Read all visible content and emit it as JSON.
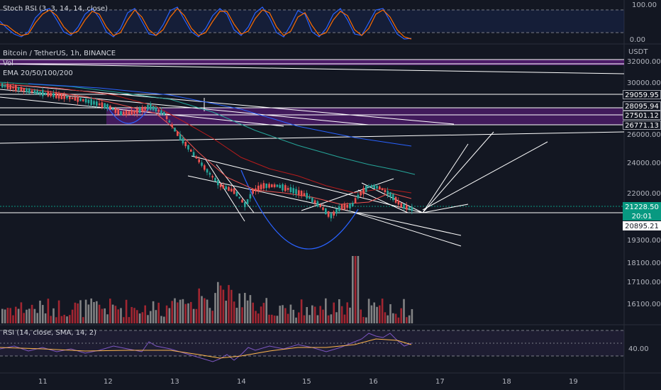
{
  "stoch_rsi": {
    "label": "Stoch RSI (3, 3, 14, 14, close)",
    "axis": [
      "100.00",
      "0.00"
    ]
  },
  "main": {
    "symbol": "Bitcoin / TetherUS, 1h, BINANCE",
    "vol_label": "Vol",
    "ema_label": "EMA 20/50/100/200",
    "currency": "USDT"
  },
  "price_axis": [
    "32000.00",
    "30000.00",
    "26000.00",
    "24000.00",
    "22000.00",
    "19300.00",
    "18100.00",
    "17100.00",
    "16100.00"
  ],
  "price_tags": {
    "level_1": "29059.95",
    "level_2": "28095.94",
    "level_3": "27501.12",
    "level_4": "26771.13",
    "last_price": "21228.50",
    "countdown": "20:01",
    "level_5": "20895.21"
  },
  "rsi": {
    "label": "RSI (14, close, SMA, 14, 2)",
    "axis": "40.00"
  },
  "time_axis": [
    "11",
    "12",
    "13",
    "14",
    "15",
    "16",
    "17",
    "18",
    "19"
  ],
  "colors": {
    "background": "#131722",
    "bull": "#26a69a",
    "bear": "#ef5350",
    "purple_zone": "#6a2f8e",
    "ema20": "#e53935",
    "ema_teal": "#26a69a",
    "ema_blue": "#2962ff"
  }
}
